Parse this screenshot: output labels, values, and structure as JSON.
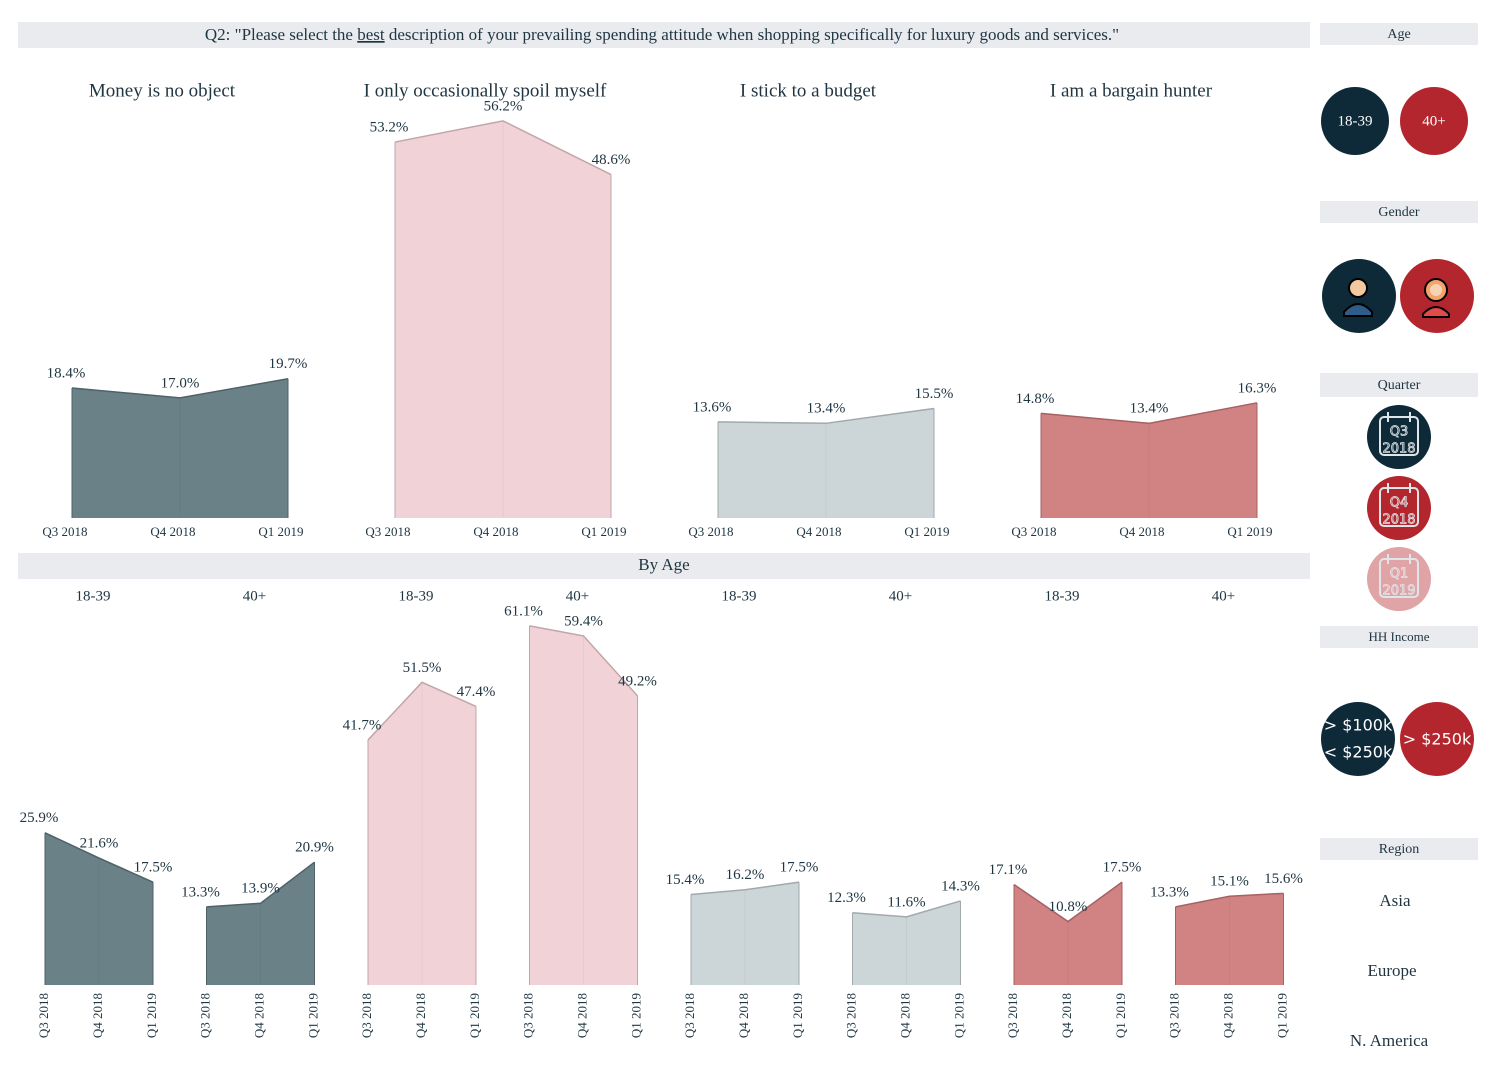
{
  "question": {
    "prefix": "Q2: \"Please select the ",
    "emphasis": "best",
    "suffix": " description of your prevailing spending attitude when shopping specifically for luxury goods and services.\""
  },
  "by_age_title": "By Age",
  "chart_data": [
    {
      "type": "area",
      "title": "Money is no object",
      "categories": [
        "Q3 2018",
        "Q4 2018",
        "Q1 2019"
      ],
      "values": [
        18.4,
        17.0,
        19.7
      ],
      "value_labels": [
        "18.4%",
        "17.0%",
        "19.7%"
      ],
      "color": "#627a82",
      "ylim": [
        0,
        60
      ]
    },
    {
      "type": "area",
      "title": "I only occasionally spoil myself",
      "categories": [
        "Q3 2018",
        "Q4 2018",
        "Q1 2019"
      ],
      "values": [
        53.2,
        56.2,
        48.6
      ],
      "value_labels": [
        "53.2%",
        "56.2%",
        "48.6%"
      ],
      "color": "#f0d0d4",
      "ylim": [
        0,
        60
      ]
    },
    {
      "type": "area",
      "title": "I stick to a budget",
      "categories": [
        "Q3 2018",
        "Q4 2018",
        "Q1 2019"
      ],
      "values": [
        13.6,
        13.4,
        15.5
      ],
      "value_labels": [
        "13.6%",
        "13.4%",
        "15.5%"
      ],
      "color": "#c9d3d5",
      "ylim": [
        0,
        60
      ]
    },
    {
      "type": "area",
      "title": "I am a bargain hunter",
      "categories": [
        "Q3 2018",
        "Q4 2018",
        "Q1 2019"
      ],
      "values": [
        14.8,
        13.4,
        16.3
      ],
      "value_labels": [
        "14.8%",
        "13.4%",
        "16.3%"
      ],
      "color": "#cf7b7c",
      "ylim": [
        0,
        60
      ]
    },
    {
      "type": "area",
      "title": "18-39",
      "categories": [
        "Q3 2018",
        "Q4 2018",
        "Q1 2019"
      ],
      "values": [
        25.9,
        21.6,
        17.5
      ],
      "value_labels": [
        "25.9%",
        "21.6%",
        "17.5%"
      ],
      "color": "#627a82",
      "ylim": [
        0,
        65
      ]
    },
    {
      "type": "area",
      "title": "40+",
      "categories": [
        "Q3 2018",
        "Q4 2018",
        "Q1 2019"
      ],
      "values": [
        13.3,
        13.9,
        20.9
      ],
      "value_labels": [
        "13.3%",
        "13.9%",
        "20.9%"
      ],
      "color": "#627a82",
      "ylim": [
        0,
        65
      ]
    },
    {
      "type": "area",
      "title": "18-39",
      "categories": [
        "Q3 2018",
        "Q4 2018",
        "Q1 2019"
      ],
      "values": [
        41.7,
        51.5,
        47.4
      ],
      "value_labels": [
        "41.7%",
        "51.5%",
        "47.4%"
      ],
      "color": "#f0d0d4",
      "ylim": [
        0,
        65
      ]
    },
    {
      "type": "area",
      "title": "40+",
      "categories": [
        "Q3 2018",
        "Q4 2018",
        "Q1 2019"
      ],
      "values": [
        61.1,
        59.4,
        49.2
      ],
      "value_labels": [
        "61.1%",
        "59.4%",
        "49.2%"
      ],
      "color": "#f0d0d4",
      "ylim": [
        0,
        65
      ]
    },
    {
      "type": "area",
      "title": "18-39",
      "categories": [
        "Q3 2018",
        "Q4 2018",
        "Q1 2019"
      ],
      "values": [
        15.4,
        16.2,
        17.5
      ],
      "value_labels": [
        "15.4%",
        "16.2%",
        "17.5%"
      ],
      "color": "#c9d3d5",
      "ylim": [
        0,
        65
      ]
    },
    {
      "type": "area",
      "title": "40+",
      "categories": [
        "Q3 2018",
        "Q4 2018",
        "Q1 2019"
      ],
      "values": [
        12.3,
        11.6,
        14.3
      ],
      "value_labels": [
        "12.3%",
        "11.6%",
        "14.3%"
      ],
      "color": "#c9d3d5",
      "ylim": [
        0,
        65
      ]
    },
    {
      "type": "area",
      "title": "18-39",
      "categories": [
        "Q3 2018",
        "Q4 2018",
        "Q1 2019"
      ],
      "values": [
        17.1,
        10.8,
        17.5
      ],
      "value_labels": [
        "17.1%",
        "10.8%",
        "17.5%"
      ],
      "color": "#cf7b7c",
      "ylim": [
        0,
        65
      ]
    },
    {
      "type": "area",
      "title": "40+",
      "categories": [
        "Q3 2018",
        "Q4 2018",
        "Q1 2019"
      ],
      "values": [
        13.3,
        15.1,
        15.6
      ],
      "value_labels": [
        "13.3%",
        "15.1%",
        "15.6%"
      ],
      "color": "#cf7b7c",
      "ylim": [
        0,
        65
      ]
    }
  ],
  "sidebar": {
    "age": {
      "title": "Age",
      "options": [
        "18-39",
        "40+"
      ]
    },
    "gender": {
      "title": "Gender"
    },
    "quarter": {
      "title": "Quarter",
      "options": [
        {
          "q": "Q3",
          "year": "2018"
        },
        {
          "q": "Q4",
          "year": "2018"
        },
        {
          "q": "Q1",
          "year": "2019"
        }
      ]
    },
    "income": {
      "title": "HH Income",
      "options": [
        [
          "> $100k",
          "< $250k"
        ],
        [
          "> $250k"
        ]
      ]
    },
    "region": {
      "title": "Region",
      "options": [
        "Asia",
        "Europe",
        "N. America"
      ]
    }
  }
}
